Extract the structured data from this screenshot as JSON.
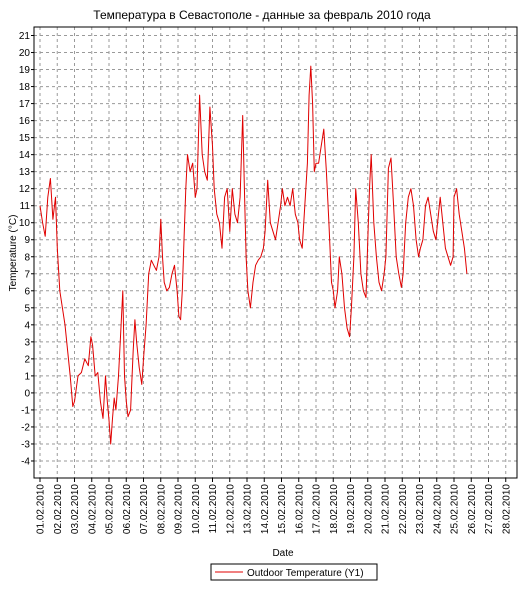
{
  "chart_data": {
    "type": "line",
    "title": "Температура в Севастополе - данные за февраль 2010 года",
    "xlabel": "Date",
    "ylabel": "Temperature (°C)",
    "ylim": [
      -5,
      21.5
    ],
    "yticks": [
      21,
      20,
      19,
      18,
      17,
      16,
      15,
      14,
      13,
      12,
      11,
      10,
      9,
      8,
      7,
      6,
      5,
      4,
      3,
      2,
      1,
      0,
      -1,
      -2,
      -3,
      -4
    ],
    "xlim": [
      0,
      28
    ],
    "xtick_labels": [
      "01.02.2010",
      "02.02.2010",
      "03.02.2010",
      "04.02.2010",
      "05.02.2010",
      "06.02.2010",
      "07.02.2010",
      "08.02.2010",
      "09.02.2010",
      "10.02.2010",
      "11.02.2010",
      "12.02.2010",
      "13.02.2010",
      "14.02.2010",
      "15.02.2010",
      "16.02.2010",
      "17.02.2010",
      "18.02.2010",
      "19.02.2010",
      "20.02.2010",
      "21.02.2010",
      "22.02.2010",
      "23.02.2010",
      "24.02.2010",
      "25.02.2010",
      "26.02.2010",
      "27.02.2010",
      "28.02.2010"
    ],
    "grid": true,
    "legend": "bottom",
    "series": [
      {
        "name": "Outdoor Temperature (Y1)",
        "color": "#e00000",
        "points": [
          [
            0.0,
            11.0
          ],
          [
            0.15,
            10.0
          ],
          [
            0.3,
            9.2
          ],
          [
            0.45,
            11.5
          ],
          [
            0.6,
            12.6
          ],
          [
            0.75,
            10.2
          ],
          [
            0.9,
            11.5
          ],
          [
            1.0,
            8.5
          ],
          [
            1.15,
            6.0
          ],
          [
            1.3,
            5.0
          ],
          [
            1.45,
            4.0
          ],
          [
            1.6,
            2.5
          ],
          [
            1.75,
            1.0
          ],
          [
            1.9,
            -0.8
          ],
          [
            2.0,
            -0.5
          ],
          [
            2.2,
            1.0
          ],
          [
            2.4,
            1.2
          ],
          [
            2.6,
            2.0
          ],
          [
            2.8,
            1.6
          ],
          [
            2.95,
            3.3
          ],
          [
            3.05,
            2.8
          ],
          [
            3.2,
            1.0
          ],
          [
            3.35,
            1.2
          ],
          [
            3.5,
            -0.5
          ],
          [
            3.65,
            -1.5
          ],
          [
            3.8,
            1.0
          ],
          [
            3.9,
            -0.5
          ],
          [
            4.0,
            -1.6
          ],
          [
            4.1,
            -3.0
          ],
          [
            4.2,
            -1.5
          ],
          [
            4.3,
            -0.3
          ],
          [
            4.4,
            -1.0
          ],
          [
            4.55,
            1.0
          ],
          [
            4.7,
            4.0
          ],
          [
            4.8,
            6.0
          ],
          [
            4.9,
            1.0
          ],
          [
            5.0,
            -0.5
          ],
          [
            5.1,
            -1.4
          ],
          [
            5.25,
            -1.0
          ],
          [
            5.4,
            2.5
          ],
          [
            5.5,
            4.3
          ],
          [
            5.6,
            3.0
          ],
          [
            5.75,
            1.5
          ],
          [
            5.9,
            0.5
          ],
          [
            6.0,
            2.0
          ],
          [
            6.15,
            4.0
          ],
          [
            6.3,
            7.0
          ],
          [
            6.45,
            7.8
          ],
          [
            6.6,
            7.5
          ],
          [
            6.75,
            7.2
          ],
          [
            6.9,
            8.0
          ],
          [
            7.0,
            10.2
          ],
          [
            7.1,
            8.0
          ],
          [
            7.2,
            6.5
          ],
          [
            7.35,
            6.0
          ],
          [
            7.5,
            6.2
          ],
          [
            7.65,
            7.0
          ],
          [
            7.8,
            7.5
          ],
          [
            7.95,
            6.0
          ],
          [
            8.05,
            4.5
          ],
          [
            8.15,
            4.3
          ],
          [
            8.25,
            6.0
          ],
          [
            8.35,
            9.0
          ],
          [
            8.45,
            12.0
          ],
          [
            8.55,
            14.0
          ],
          [
            8.7,
            13.0
          ],
          [
            8.85,
            13.5
          ],
          [
            9.0,
            11.5
          ],
          [
            9.1,
            12.0
          ],
          [
            9.25,
            17.5
          ],
          [
            9.4,
            14.0
          ],
          [
            9.55,
            13.0
          ],
          [
            9.7,
            12.5
          ],
          [
            9.85,
            16.8
          ],
          [
            10.0,
            14.5
          ],
          [
            10.1,
            12.0
          ],
          [
            10.25,
            10.5
          ],
          [
            10.4,
            10.0
          ],
          [
            10.55,
            8.5
          ],
          [
            10.7,
            11.5
          ],
          [
            10.85,
            12.0
          ],
          [
            11.0,
            9.5
          ],
          [
            11.15,
            12.0
          ],
          [
            11.3,
            10.5
          ],
          [
            11.45,
            10.0
          ],
          [
            11.6,
            11.5
          ],
          [
            11.75,
            16.3
          ],
          [
            11.85,
            12.0
          ],
          [
            11.95,
            8.0
          ],
          [
            12.05,
            6.0
          ],
          [
            12.2,
            5.0
          ],
          [
            12.35,
            6.5
          ],
          [
            12.5,
            7.5
          ],
          [
            12.65,
            7.8
          ],
          [
            12.8,
            8.0
          ],
          [
            12.95,
            8.5
          ],
          [
            13.05,
            9.5
          ],
          [
            13.2,
            12.5
          ],
          [
            13.35,
            10.0
          ],
          [
            13.5,
            9.5
          ],
          [
            13.65,
            9.0
          ],
          [
            13.8,
            10.0
          ],
          [
            13.95,
            11.0
          ],
          [
            14.05,
            12.0
          ],
          [
            14.2,
            11.0
          ],
          [
            14.35,
            11.5
          ],
          [
            14.5,
            11.0
          ],
          [
            14.65,
            12.0
          ],
          [
            14.8,
            10.5
          ],
          [
            14.95,
            10.0
          ],
          [
            15.05,
            9.0
          ],
          [
            15.2,
            8.5
          ],
          [
            15.35,
            11.0
          ],
          [
            15.5,
            13.5
          ],
          [
            15.6,
            17.5
          ],
          [
            15.7,
            19.2
          ],
          [
            15.8,
            17.0
          ],
          [
            15.9,
            13.0
          ],
          [
            16.0,
            13.5
          ],
          [
            16.15,
            13.5
          ],
          [
            16.3,
            14.5
          ],
          [
            16.45,
            15.5
          ],
          [
            16.6,
            13.0
          ],
          [
            16.75,
            10.0
          ],
          [
            16.9,
            6.5
          ],
          [
            17.0,
            6.0
          ],
          [
            17.1,
            5.0
          ],
          [
            17.25,
            6.0
          ],
          [
            17.35,
            8.0
          ],
          [
            17.5,
            7.0
          ],
          [
            17.65,
            5.0
          ],
          [
            17.8,
            3.8
          ],
          [
            17.95,
            3.3
          ],
          [
            18.05,
            5.0
          ],
          [
            18.2,
            8.0
          ],
          [
            18.3,
            12.0
          ],
          [
            18.45,
            10.0
          ],
          [
            18.6,
            7.0
          ],
          [
            18.75,
            6.0
          ],
          [
            18.9,
            5.6
          ],
          [
            19.0,
            9.0
          ],
          [
            19.1,
            12.0
          ],
          [
            19.2,
            14.0
          ],
          [
            19.35,
            10.0
          ],
          [
            19.5,
            8.0
          ],
          [
            19.65,
            6.5
          ],
          [
            19.8,
            6.0
          ],
          [
            19.95,
            7.0
          ],
          [
            20.05,
            8.0
          ],
          [
            20.2,
            13.2
          ],
          [
            20.35,
            13.8
          ],
          [
            20.5,
            11.0
          ],
          [
            20.65,
            8.0
          ],
          [
            20.8,
            7.0
          ],
          [
            20.95,
            6.2
          ],
          [
            21.05,
            7.0
          ],
          [
            21.2,
            10.0
          ],
          [
            21.35,
            11.5
          ],
          [
            21.5,
            12.0
          ],
          [
            21.65,
            11.0
          ],
          [
            21.8,
            9.0
          ],
          [
            21.95,
            8.0
          ],
          [
            22.05,
            8.5
          ],
          [
            22.2,
            9.0
          ],
          [
            22.35,
            11.0
          ],
          [
            22.5,
            11.5
          ],
          [
            22.65,
            10.5
          ],
          [
            22.8,
            9.5
          ],
          [
            22.95,
            9.0
          ],
          [
            23.05,
            10.0
          ],
          [
            23.2,
            11.5
          ],
          [
            23.35,
            10.0
          ],
          [
            23.5,
            8.5
          ],
          [
            23.65,
            8.0
          ],
          [
            23.8,
            7.5
          ],
          [
            23.95,
            8.0
          ],
          [
            24.0,
            11.5
          ],
          [
            24.15,
            12.0
          ],
          [
            24.3,
            10.5
          ],
          [
            24.45,
            9.5
          ],
          [
            24.6,
            8.5
          ],
          [
            24.75,
            7.0
          ]
        ]
      }
    ]
  }
}
